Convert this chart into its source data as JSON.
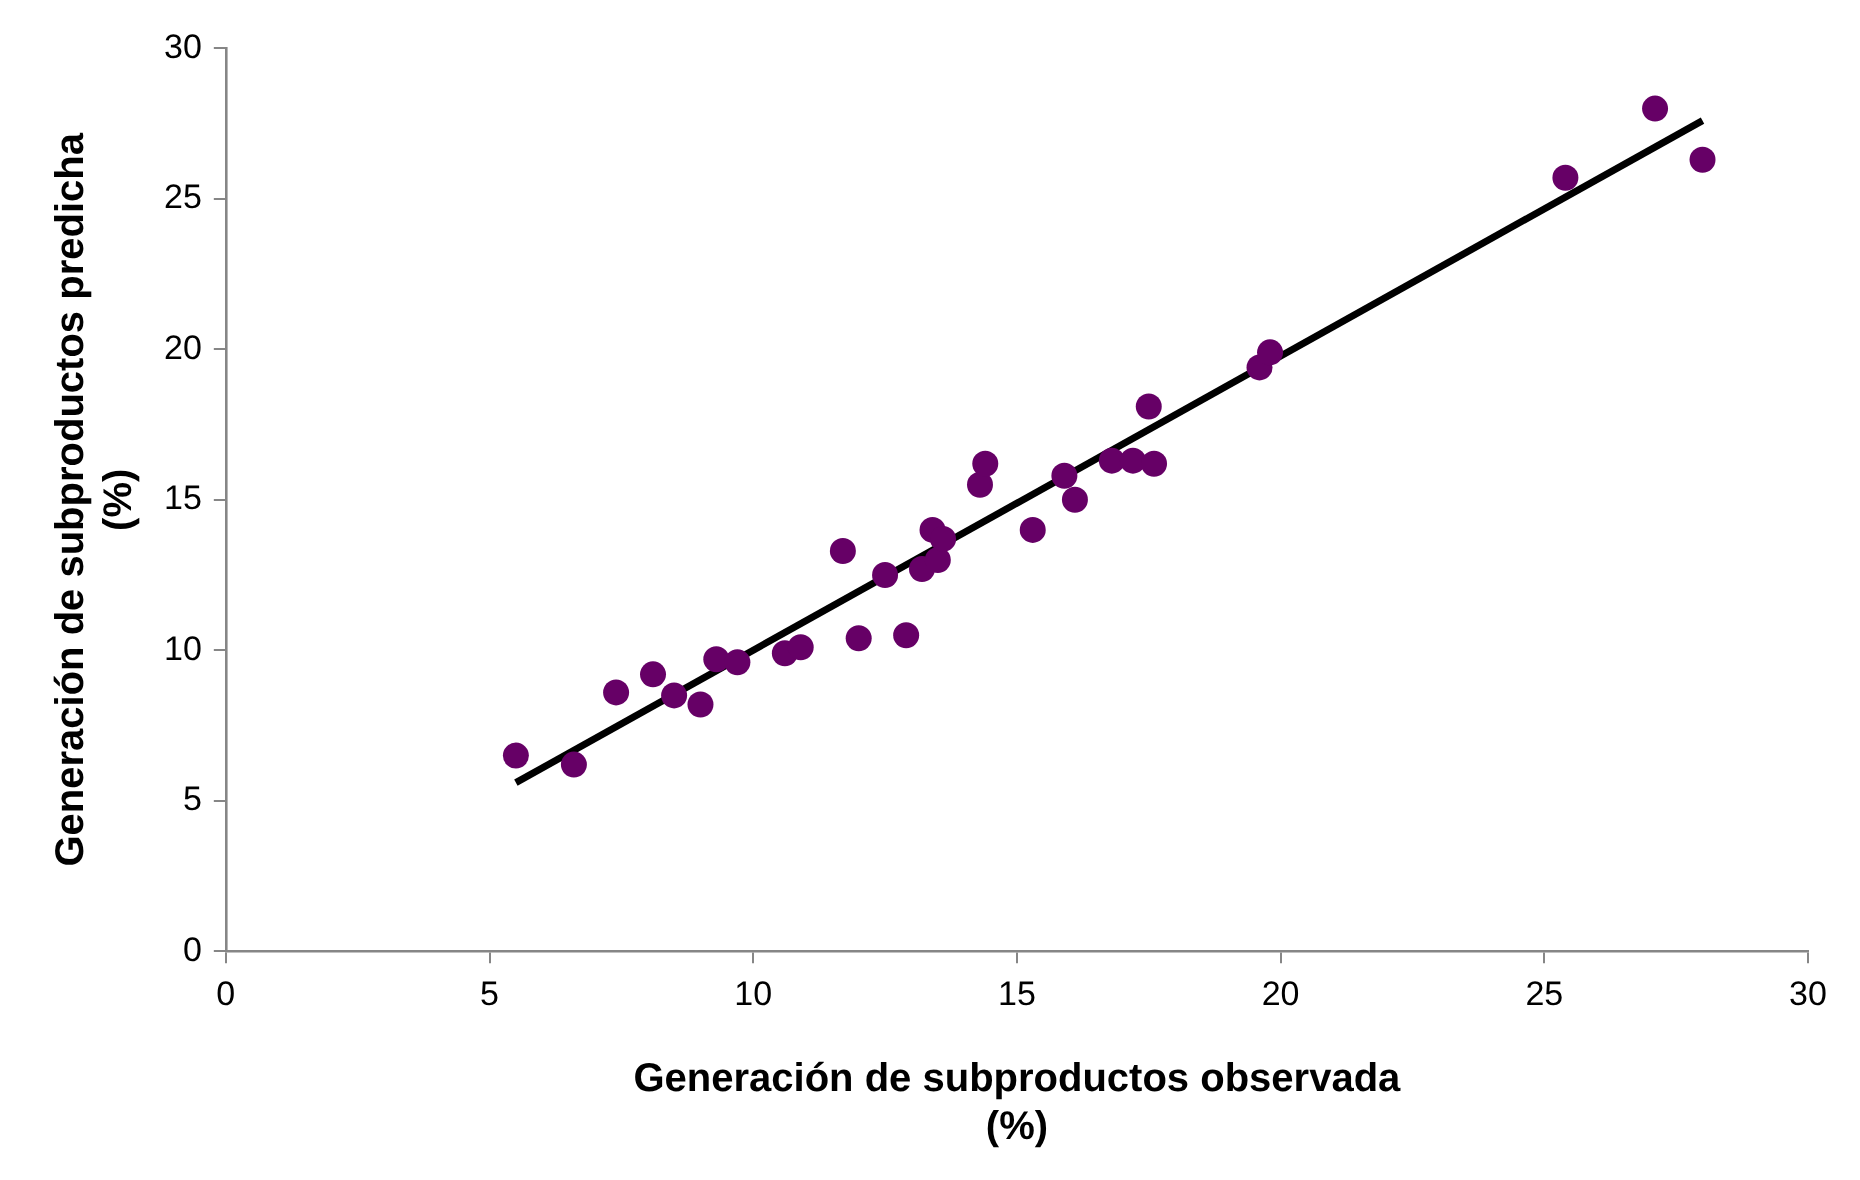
{
  "chart_data": {
    "type": "scatter",
    "xlabel": "Generación de subproductos observada\n(%)",
    "ylabel": "Generación de subproductos predicha\n(%)",
    "xlim": [
      0,
      30
    ],
    "ylim": [
      0,
      30
    ],
    "xticks": [
      0,
      5,
      10,
      15,
      20,
      25,
      30
    ],
    "yticks": [
      0,
      5,
      10,
      15,
      20,
      25,
      30
    ],
    "grid": false,
    "legend": false,
    "marker": "circle",
    "series": [
      {
        "type": "scatter",
        "color": "#660066",
        "x": [
          5.5,
          6.6,
          7.4,
          8.1,
          8.5,
          9.0,
          9.3,
          9.7,
          10.6,
          10.9,
          11.7,
          12.0,
          12.5,
          12.9,
          13.2,
          13.4,
          13.5,
          13.6,
          14.3,
          14.4,
          15.3,
          15.9,
          16.1,
          16.8,
          17.2,
          17.5,
          17.6,
          19.6,
          19.8,
          25.4,
          27.1,
          28.0
        ],
        "values": [
          6.5,
          6.2,
          8.6,
          9.2,
          8.5,
          8.2,
          9.7,
          9.6,
          9.9,
          10.1,
          13.3,
          10.4,
          12.5,
          10.5,
          12.7,
          14.0,
          13.0,
          13.7,
          15.5,
          16.2,
          14.0,
          15.8,
          15.0,
          16.3,
          16.3,
          18.1,
          16.2,
          19.4,
          19.9,
          25.7,
          28.0,
          26.3
        ]
      },
      {
        "type": "line",
        "color": "#000000",
        "marker": "none",
        "line_style": "solid",
        "x": [
          5.5,
          28.0
        ],
        "values": [
          5.6,
          27.6
        ]
      }
    ]
  }
}
